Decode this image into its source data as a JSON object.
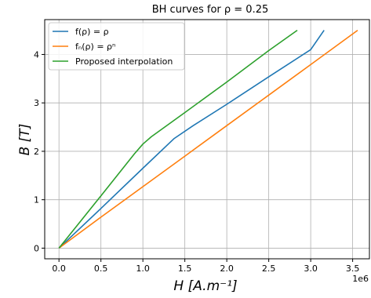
{
  "chart_data": {
    "type": "line",
    "title": "BH curves for ρ = 0.25",
    "xlabel": "H [A.m⁻¹]",
    "ylabel": "B [T]",
    "x_offset_label": "1e6",
    "xlim": [
      -0.17,
      3.7
    ],
    "ylim": [
      -0.22,
      4.72
    ],
    "xticks": [
      0.0,
      0.5,
      1.0,
      1.5,
      2.0,
      2.5,
      3.0,
      3.5
    ],
    "xtick_labels": [
      "0.0",
      "0.5",
      "1.0",
      "1.5",
      "2.0",
      "2.5",
      "3.0",
      "3.5"
    ],
    "yticks": [
      0,
      1,
      2,
      3,
      4
    ],
    "ytick_labels": [
      "0",
      "1",
      "2",
      "3",
      "4"
    ],
    "grid": true,
    "legend_position": "top-left",
    "series": [
      {
        "name": "f(ρ) = ρ",
        "color": "#1f77b4",
        "x": [
          0.0,
          0.5,
          1.0,
          1.37,
          1.6,
          2.0,
          2.5,
          3.0,
          3.16
        ],
        "y": [
          0.0,
          0.82,
          1.65,
          2.26,
          2.53,
          2.97,
          3.54,
          4.1,
          4.5
        ]
      },
      {
        "name": "fₙ(ρ) = ρⁿ",
        "color": "#ff7f0e",
        "x": [
          0.0,
          0.5,
          1.0,
          1.5,
          2.0,
          2.5,
          3.0,
          3.56
        ],
        "y": [
          0.0,
          0.64,
          1.27,
          1.9,
          2.53,
          3.16,
          3.79,
          4.5
        ]
      },
      {
        "name": "Proposed interpolation",
        "color": "#2ca02c",
        "x": [
          0.0,
          0.5,
          0.9,
          1.0,
          1.1,
          1.5,
          2.0,
          2.5,
          2.84
        ],
        "y": [
          0.0,
          1.08,
          1.95,
          2.15,
          2.3,
          2.8,
          3.43,
          4.08,
          4.5
        ]
      }
    ]
  }
}
